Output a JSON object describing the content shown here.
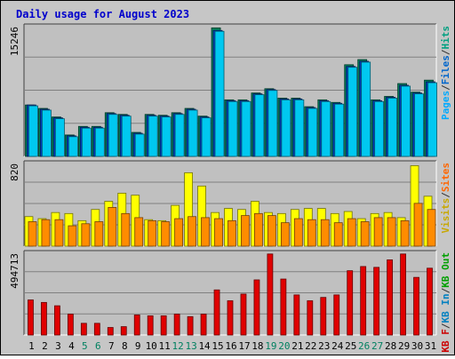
{
  "chart_data": {
    "type": "bar",
    "title": "Daily usage for August 2023",
    "categories": [
      "1",
      "2",
      "3",
      "4",
      "5",
      "6",
      "7",
      "8",
      "9",
      "10",
      "11",
      "12",
      "13",
      "14",
      "15",
      "16",
      "17",
      "18",
      "19",
      "20",
      "21",
      "22",
      "23",
      "24",
      "25",
      "26",
      "27",
      "28",
      "29",
      "30",
      "31"
    ],
    "weekend_days": [
      "5",
      "6",
      "12",
      "13",
      "19",
      "20",
      "26",
      "27"
    ],
    "panels": [
      {
        "max_label": "15246",
        "ymax": 15246,
        "right_label": [
          {
            "text": "Pages",
            "color": "#00aaff"
          },
          {
            "text": "/",
            "color": "#333333"
          },
          {
            "text": "Files",
            "color": "#0066cc"
          },
          {
            "text": "/",
            "color": "#333333"
          },
          {
            "text": "Hits",
            "color": "#00a080"
          }
        ],
        "series": [
          {
            "key": "hits",
            "color": "#00805c",
            "values": [
              6000,
              5600,
              4600,
              2500,
              3500,
              3500,
              5100,
              4900,
              2800,
              4900,
              4800,
              5100,
              5600,
              4700,
              15000,
              6600,
              6600,
              7400,
              7900,
              6800,
              6800,
              5800,
              6600,
              6300,
              10700,
              11300,
              6600,
              7000,
              8500,
              7500,
              8900
            ]
          },
          {
            "key": "files",
            "color": "#0040c0",
            "values": [
              6000,
              5500,
              4500,
              2400,
              3400,
              3400,
              5000,
              4800,
              2700,
              4800,
              4700,
              5000,
              5500,
              4600,
              14700,
              6500,
              6500,
              7300,
              7800,
              6700,
              6700,
              5700,
              6500,
              6200,
              10500,
              11100,
              6500,
              6900,
              8300,
              7400,
              8700
            ]
          },
          {
            "key": "pages",
            "color": "#00c8f0",
            "values": [
              5900,
              5400,
              4400,
              2300,
              3300,
              3300,
              4900,
              4700,
              2600,
              4700,
              4600,
              4900,
              5400,
              4500,
              14600,
              6400,
              6400,
              7200,
              7700,
              6600,
              6600,
              5600,
              6400,
              6100,
              10400,
              11000,
              6400,
              6800,
              8200,
              7300,
              8600
            ]
          }
        ]
      },
      {
        "max_label": "820",
        "ymax": 820,
        "right_label": [
          {
            "text": "Visits",
            "color": "#c8a800"
          },
          {
            "text": "/",
            "color": "#333333"
          },
          {
            "text": "Sites",
            "color": "#ff6600"
          }
        ],
        "series": [
          {
            "key": "visits",
            "color": "#ffff00",
            "values": [
              290,
              270,
              330,
              320,
              250,
              360,
              440,
              520,
              500,
              260,
              250,
              400,
              720,
              590,
              330,
              370,
              360,
              440,
              330,
              320,
              360,
              370,
              370,
              320,
              340,
              270,
              320,
              330,
              280,
              790,
              490
            ]
          },
          {
            "key": "sites",
            "color": "#ff8c00",
            "values": [
              240,
              260,
              260,
              200,
              220,
              240,
              380,
              320,
              280,
              250,
              240,
              270,
              290,
              280,
              270,
              250,
              300,
              320,
              300,
              230,
              270,
              260,
              260,
              230,
              270,
              240,
              280,
              280,
              250,
              420,
              360
            ]
          }
        ]
      },
      {
        "max_label": "494713",
        "ymax": 494713,
        "right_label": [
          {
            "text": "KB F",
            "color": "#cc0000"
          },
          {
            "text": "/",
            "color": "#333333"
          },
          {
            "text": "KB In",
            "color": "#0080c0"
          },
          {
            "text": "/",
            "color": "#333333"
          },
          {
            "text": "KB Out",
            "color": "#00a000"
          }
        ],
        "series": [
          {
            "key": "kb",
            "color": "#e00000",
            "values": [
              210000,
              195000,
              175000,
              125000,
              70000,
              70000,
              45000,
              50000,
              120000,
              115000,
              115000,
              125000,
              110000,
              125000,
              270000,
              205000,
              245000,
              330000,
              485000,
              335000,
              240000,
              205000,
              225000,
              240000,
              385000,
              410000,
              405000,
              450000,
              485000,
              345000,
              400000
            ]
          }
        ]
      }
    ]
  }
}
